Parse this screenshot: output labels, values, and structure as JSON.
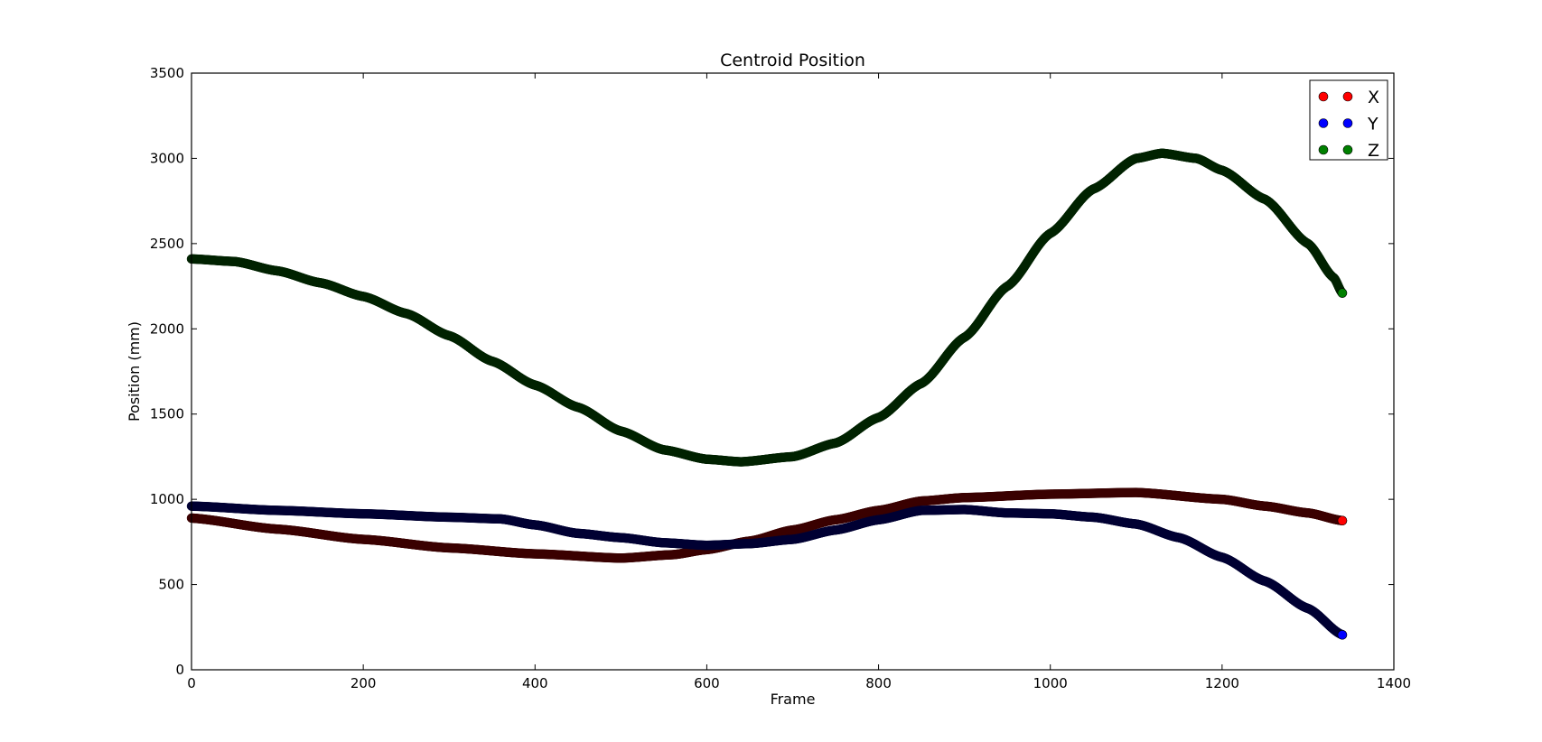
{
  "chart_data": {
    "type": "scatter",
    "title": "Centroid Position",
    "xlabel": "Frame",
    "ylabel": "Position (mm)",
    "xlim": [
      0,
      1400
    ],
    "ylim": [
      0,
      3500
    ],
    "xticks": [
      0,
      200,
      400,
      600,
      800,
      1000,
      1200,
      1400
    ],
    "yticks": [
      0,
      500,
      1000,
      1500,
      2000,
      2500,
      3000,
      3500
    ],
    "grid": false,
    "legend_position": "top-right",
    "series": [
      {
        "name": "X",
        "color": "#ff0000",
        "edge_color": "#3a0000",
        "anchors": [
          [
            0,
            890
          ],
          [
            100,
            825
          ],
          [
            200,
            765
          ],
          [
            300,
            715
          ],
          [
            400,
            680
          ],
          [
            500,
            655
          ],
          [
            560,
            675
          ],
          [
            600,
            705
          ],
          [
            650,
            755
          ],
          [
            700,
            820
          ],
          [
            750,
            880
          ],
          [
            800,
            935
          ],
          [
            850,
            990
          ],
          [
            900,
            1010
          ],
          [
            1000,
            1030
          ],
          [
            1100,
            1040
          ],
          [
            1200,
            1000
          ],
          [
            1250,
            960
          ],
          [
            1300,
            920
          ],
          [
            1340,
            875
          ]
        ]
      },
      {
        "name": "Y",
        "color": "#0000ff",
        "edge_color": "#000033",
        "anchors": [
          [
            0,
            960
          ],
          [
            100,
            935
          ],
          [
            200,
            915
          ],
          [
            300,
            895
          ],
          [
            360,
            885
          ],
          [
            400,
            850
          ],
          [
            450,
            800
          ],
          [
            500,
            775
          ],
          [
            550,
            745
          ],
          [
            600,
            730
          ],
          [
            650,
            740
          ],
          [
            700,
            765
          ],
          [
            750,
            820
          ],
          [
            800,
            880
          ],
          [
            850,
            935
          ],
          [
            900,
            940
          ],
          [
            950,
            920
          ],
          [
            1000,
            915
          ],
          [
            1050,
            895
          ],
          [
            1100,
            855
          ],
          [
            1150,
            775
          ],
          [
            1200,
            660
          ],
          [
            1250,
            520
          ],
          [
            1300,
            360
          ],
          [
            1340,
            205
          ]
        ]
      },
      {
        "name": "Z",
        "color": "#008000",
        "edge_color": "#002200",
        "anchors": [
          [
            0,
            2410
          ],
          [
            50,
            2395
          ],
          [
            100,
            2340
          ],
          [
            150,
            2270
          ],
          [
            200,
            2190
          ],
          [
            250,
            2090
          ],
          [
            300,
            1960
          ],
          [
            350,
            1810
          ],
          [
            400,
            1670
          ],
          [
            450,
            1540
          ],
          [
            500,
            1400
          ],
          [
            550,
            1290
          ],
          [
            600,
            1235
          ],
          [
            640,
            1220
          ],
          [
            700,
            1250
          ],
          [
            750,
            1330
          ],
          [
            800,
            1480
          ],
          [
            850,
            1680
          ],
          [
            900,
            1950
          ],
          [
            950,
            2250
          ],
          [
            1000,
            2560
          ],
          [
            1050,
            2820
          ],
          [
            1100,
            3000
          ],
          [
            1130,
            3030
          ],
          [
            1170,
            3000
          ],
          [
            1200,
            2930
          ],
          [
            1250,
            2760
          ],
          [
            1300,
            2500
          ],
          [
            1330,
            2300
          ],
          [
            1340,
            2210
          ]
        ]
      }
    ]
  }
}
